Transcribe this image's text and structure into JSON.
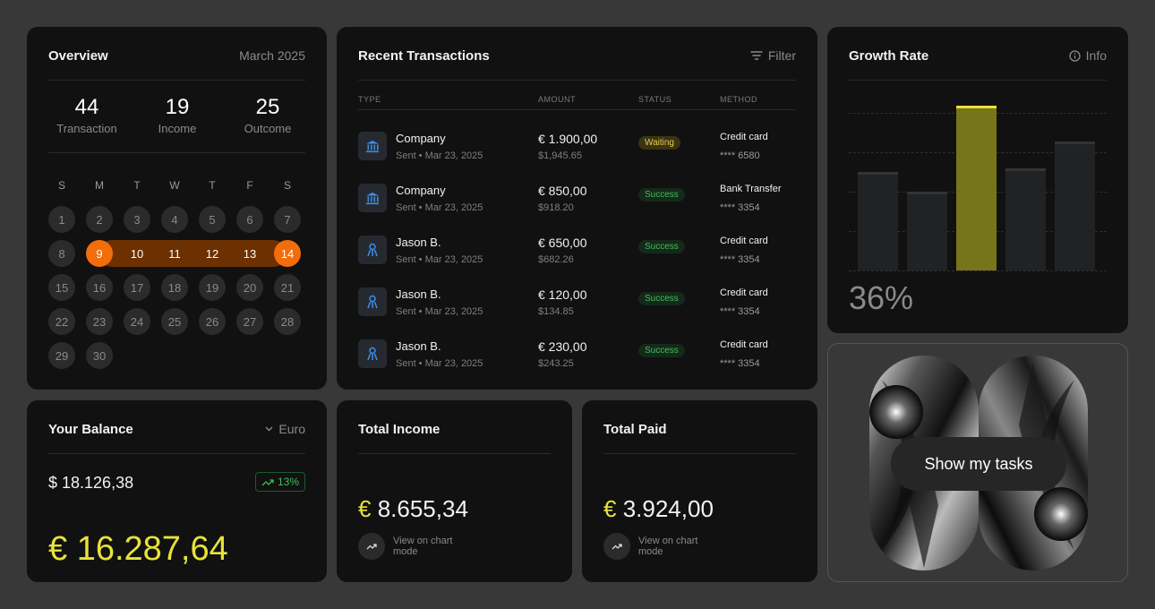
{
  "overview": {
    "title": "Overview",
    "month": "March 2025",
    "stats": [
      {
        "value": "44",
        "label": "Transaction"
      },
      {
        "value": "19",
        "label": "Income"
      },
      {
        "value": "25",
        "label": "Outcome"
      }
    ],
    "weekdays": [
      "S",
      "M",
      "T",
      "W",
      "T",
      "F",
      "S"
    ],
    "days": [
      "1",
      "2",
      "3",
      "4",
      "5",
      "6",
      "7",
      "8",
      "9",
      "10",
      "11",
      "12",
      "13",
      "14",
      "15",
      "16",
      "17",
      "18",
      "19",
      "20",
      "21",
      "22",
      "23",
      "24",
      "25",
      "26",
      "27",
      "28",
      "29",
      "30"
    ],
    "selected_range": {
      "start": "9",
      "end": "14"
    },
    "colors": {
      "range_edge": "#f36d0a",
      "range_fill": "#6d3000"
    }
  },
  "transactions": {
    "title": "Recent Transactions",
    "filter_label": "Filter",
    "columns": [
      "TYPE",
      "AMOUNT",
      "STATUS",
      "METHOD"
    ],
    "rows": [
      {
        "icon": "bank-icon",
        "name": "Company",
        "sub": "Sent  •  Mar 23, 2025",
        "amount": "€ 1.900,00",
        "usd": "$1,945.65",
        "status": "Waiting",
        "method": "Credit card",
        "card": "**** 6580"
      },
      {
        "icon": "bank-icon",
        "name": "Company",
        "sub": "Sent  •  Mar 23, 2025",
        "amount": "€ 850,00",
        "usd": "$918.20",
        "status": "Success",
        "method": "Bank Transfer",
        "card": "**** 3354"
      },
      {
        "icon": "person-icon",
        "name": "Jason B.",
        "sub": "Sent  •  Mar 23, 2025",
        "amount": "€ 650,00",
        "usd": "$682.26",
        "status": "Success",
        "method": "Credit card",
        "card": "**** 3354"
      },
      {
        "icon": "person-icon",
        "name": "Jason B.",
        "sub": "Sent  •  Mar 23, 2025",
        "amount": "€ 120,00",
        "usd": "$134.85",
        "status": "Success",
        "method": "Credit card",
        "card": "**** 3354"
      },
      {
        "icon": "person-icon",
        "name": "Jason B.",
        "sub": "Sent  •  Mar 23, 2025",
        "amount": "€ 230,00",
        "usd": "$243.25",
        "status": "Success",
        "method": "Credit card",
        "card": "**** 3354"
      }
    ]
  },
  "growth": {
    "title": "Growth Rate",
    "info_label": "Info",
    "value": "36%",
    "bars": [
      0.6,
      0.48,
      1.0,
      0.62,
      0.78
    ],
    "highlight_index": 2,
    "colors": {
      "highlight": "#e8e23a",
      "bar": "#212223"
    }
  },
  "balance": {
    "title": "Your Balance",
    "currency_select": "Euro",
    "usd_value": "$ 18.126,38",
    "change": "13%",
    "eur_value": "€ 16.287,64"
  },
  "total_income": {
    "title": "Total Income",
    "currency": "€",
    "value": "8.655,34",
    "link_label": "View on chart mode"
  },
  "total_paid": {
    "title": "Total Paid",
    "currency": "€",
    "value": "3.924,00",
    "link_label": "View on chart mode"
  },
  "tasks": {
    "button_label": "Show my tasks"
  }
}
